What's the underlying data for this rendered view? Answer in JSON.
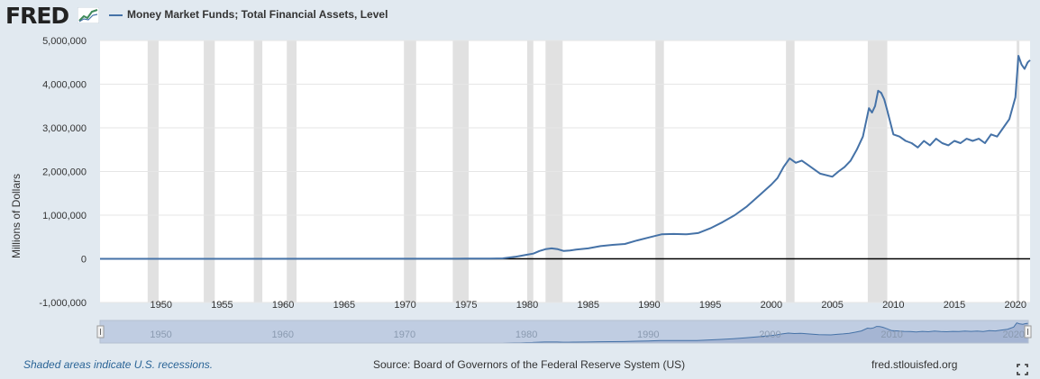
{
  "header": {
    "logo_text": "FRED",
    "logo_icon": "fred-graph-icon",
    "legend_label": "Money Market Funds; Total Financial Assets, Level"
  },
  "footer": {
    "recession_note": "Shaded areas indicate U.S. recessions.",
    "source": "Source: Board of Governors of the Federal Reserve System (US)",
    "url": "fred.stlouisfed.org",
    "fullscreen_icon": "fullscreen-icon"
  },
  "colors": {
    "series": "#4572a7",
    "recession": "#e1e1e1",
    "background": "#e1e9f0",
    "plot_background": "#ffffff",
    "navigator_fill": "#c0cde2",
    "zero_line": "#000000"
  },
  "chart_data": {
    "type": "line",
    "title": "",
    "xlabel": "",
    "ylabel": "Millions of Dollars",
    "xlim": [
      1945,
      2021.2
    ],
    "ylim": [
      -1000000,
      5000000
    ],
    "grid": true,
    "legend": "top-left",
    "x_ticks": [
      1950,
      1955,
      1960,
      1965,
      1970,
      1975,
      1980,
      1985,
      1990,
      1995,
      2000,
      2005,
      2010,
      2015,
      2020
    ],
    "y_ticks": [
      -1000000,
      0,
      1000000,
      2000000,
      3000000,
      4000000,
      5000000
    ],
    "y_tick_labels": [
      "-1,000,000",
      "0",
      "1,000,000",
      "2,000,000",
      "3,000,000",
      "4,000,000",
      "5,000,000"
    ],
    "navigator_labels": [
      "1950",
      "1960",
      "1970",
      "1980",
      "1990",
      "2000",
      "2010",
      "2020"
    ],
    "recessions": [
      [
        1948.9,
        1949.8
      ],
      [
        1953.5,
        1954.4
      ],
      [
        1957.6,
        1958.3
      ],
      [
        1960.3,
        1961.1
      ],
      [
        1969.9,
        1970.9
      ],
      [
        1973.9,
        1975.2
      ],
      [
        1980.0,
        1980.5
      ],
      [
        1981.5,
        1982.9
      ],
      [
        1990.5,
        1991.2
      ],
      [
        2001.2,
        2001.9
      ],
      [
        2007.9,
        2009.5
      ],
      [
        2020.1,
        2020.3
      ]
    ],
    "series": [
      {
        "name": "Money Market Funds; Total Financial Assets, Level",
        "x": [
          1945,
          1974.0,
          1975.0,
          1976.0,
          1977.0,
          1978.0,
          1979.0,
          1979.5,
          1980.0,
          1980.5,
          1981.0,
          1981.5,
          1982.0,
          1982.5,
          1983.0,
          1983.5,
          1984.0,
          1985.0,
          1986.0,
          1987.0,
          1988.0,
          1989.0,
          1990.0,
          1991.0,
          1992.0,
          1993.0,
          1994.0,
          1995.0,
          1996.0,
          1997.0,
          1998.0,
          1999.0,
          2000.0,
          2000.5,
          2001.0,
          2001.5,
          2002.0,
          2002.5,
          2003.0,
          2004.0,
          2005.0,
          2005.5,
          2006.0,
          2006.5,
          2007.0,
          2007.5,
          2008.0,
          2008.25,
          2008.5,
          2008.75,
          2009.0,
          2009.25,
          2009.5,
          2010.0,
          2010.5,
          2011.0,
          2011.5,
          2012.0,
          2012.5,
          2013.0,
          2013.5,
          2014.0,
          2014.5,
          2015.0,
          2015.5,
          2016.0,
          2016.5,
          2017.0,
          2017.5,
          2018.0,
          2018.5,
          2019.0,
          2019.5,
          2020.0,
          2020.25,
          2020.5,
          2020.75,
          2021.0,
          2021.2
        ],
        "values": [
          0,
          2000,
          4000,
          4000,
          4000,
          10000,
          45000,
          70000,
          95000,
          120000,
          180000,
          220000,
          240000,
          220000,
          180000,
          190000,
          210000,
          240000,
          290000,
          320000,
          340000,
          420000,
          490000,
          560000,
          570000,
          560000,
          590000,
          700000,
          840000,
          1000000,
          1200000,
          1450000,
          1700000,
          1850000,
          2100000,
          2300000,
          2200000,
          2250000,
          2150000,
          1950000,
          1880000,
          2000000,
          2100000,
          2250000,
          2500000,
          2800000,
          3450000,
          3350000,
          3500000,
          3850000,
          3800000,
          3650000,
          3400000,
          2850000,
          2800000,
          2700000,
          2650000,
          2550000,
          2700000,
          2600000,
          2750000,
          2650000,
          2600000,
          2700000,
          2650000,
          2750000,
          2700000,
          2750000,
          2650000,
          2850000,
          2800000,
          3000000,
          3200000,
          3700000,
          4650000,
          4450000,
          4350000,
          4500000,
          4550000
        ]
      }
    ]
  }
}
